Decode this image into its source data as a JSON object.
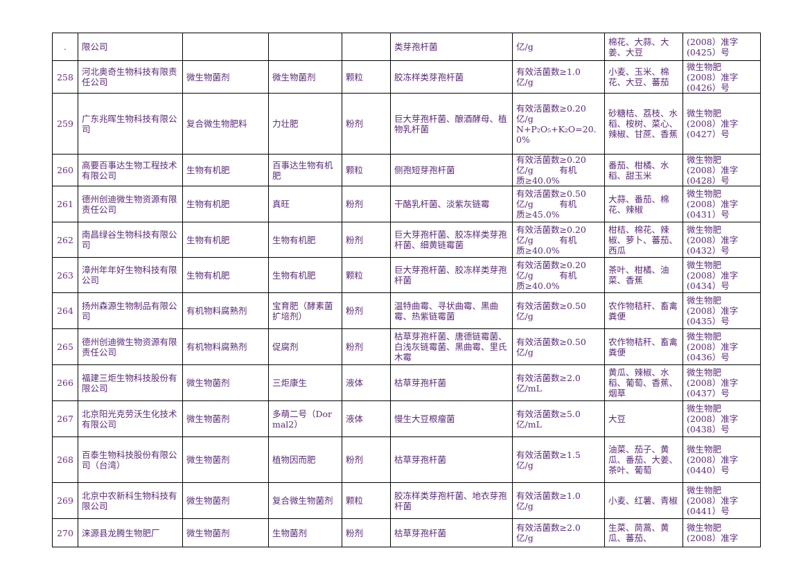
{
  "continuation_row": {
    "no": ".",
    "company": "限公司",
    "category": "",
    "product": "",
    "form": "",
    "strains": "类芽孢杆菌",
    "content": [
      "亿/g"
    ],
    "crops": "棉花、大蒜、大姜、大豆",
    "reg": [
      "(2008）准字",
      "(0425）号"
    ]
  },
  "rows": [
    {
      "no": "258",
      "company": "河北奥奇生物科技有限责任公司",
      "category": "微生物菌剂",
      "product": "微生物菌剂",
      "form": "颗粒",
      "strains": "胶冻样类芽孢杆菌",
      "content": [
        "有效活菌数≥1.0",
        "亿/g"
      ],
      "crops": "小麦、玉米、棉花、大豆、蕃茄",
      "reg": [
        "微生物肥",
        "(2008）准字",
        "(0426）号"
      ]
    },
    {
      "no": "259",
      "company": "广东兆晖生物科技有限公司",
      "category": "复合微生物肥料",
      "product": "力壮肥",
      "form": "粉剂",
      "strains": "巨大芽孢杆菌、酿酒酵母、植物乳杆菌",
      "content": [
        "有效活菌数≥0.20",
        "亿/g",
        "N+P₂O₅+K₂O=20.0%"
      ],
      "crops": "砂糖桔、荔枝、水稻、桉树、菜心、辣椒、甘蔗、香蕉",
      "reg": [
        "微生物肥",
        "(2008）准字",
        "(0427）号"
      ]
    },
    {
      "no": "260",
      "company": "高要百事达生物工程技术有限公司",
      "category": "生物有机肥",
      "product": "百事达生物有机肥",
      "form": "颗粒",
      "strains": "侧孢短芽孢杆菌",
      "content": [
        "有效活菌数≥0.20",
        "亿/g　　　有机",
        "质≥40.0%"
      ],
      "crops": "番茄、柑橘、水稻、甜玉米",
      "reg": [
        "微生物肥",
        "(2008）准字",
        "(0428）号"
      ]
    },
    {
      "no": "261",
      "company": "德州创迪微生物资源有限责任公司",
      "category": "生物有机肥",
      "product": "真旺",
      "form": "粉剂",
      "strains": "干酪乳杆菌、淡紫灰链霉",
      "content": [
        "有效活菌数≥0.50",
        "亿/g　　　有机",
        "质≥45.0%"
      ],
      "crops": "大蒜、番茄、棉花、辣椒",
      "reg": [
        "微生物肥",
        "(2008）准字",
        "(0431）号"
      ]
    },
    {
      "no": "262",
      "company": "南昌绿谷生物科技有限公司",
      "category": "生物有机肥",
      "product": "生物有机肥",
      "form": "粉剂",
      "strains": "巨大芽孢杆菌、胶冻样类芽孢杆菌、细黄链霉菌",
      "content": [
        "有效活菌数≥0.20",
        "亿/g　　　有机",
        "质≥40.0%"
      ],
      "crops": "柑桔、棉花、辣椒、萝卜、蕃茄、西瓜",
      "reg": [
        "微生物肥",
        "(2008）准字",
        "(0432）号"
      ]
    },
    {
      "no": "263",
      "company": "漳州年年好生物科技有限公司",
      "category": "生物有机肥",
      "product": "生物有机肥",
      "form": "颗粒",
      "strains": "巨大芽孢杆菌、胶冻样类芽孢杆菌",
      "content": [
        "有效活菌数≥0.20",
        "亿/g　　　有机",
        "质≥40.0%"
      ],
      "crops": "茶叶、柑橘、油菜、香蕉",
      "reg": [
        "微生物肥",
        "(2008）准字",
        "(0434）号"
      ]
    },
    {
      "no": "264",
      "company": "扬州森源生物制品有限公司",
      "category": "有机物料腐熟剂",
      "product": "宝育肥（酵素菌扩培剂）",
      "form": "粉剂",
      "strains": "温特曲霉、寻状曲霉、黑曲霉、热紫链霉菌",
      "content": [
        "有效活菌数≥0.50",
        "亿/g"
      ],
      "crops": "农作物秸秆、畜禽粪便",
      "reg": [
        "微生物肥",
        "(2008）准字",
        "(0435）号"
      ]
    },
    {
      "no": "265",
      "company": "德州创迪微生物资源有限责任公司",
      "category": "有机物料腐熟剂",
      "product": "促腐剂",
      "form": "粉剂",
      "strains": "枯草芽孢杆菌、唐德链霉菌、白浅灰链霉菌、黑曲霉、里氏木霉",
      "content": [
        "有效活菌数≥0.50",
        "亿/g"
      ],
      "crops": "农作物秸秆、畜禽粪便",
      "reg": [
        "微生物肥",
        "(2008）准字",
        "(0436）号"
      ]
    },
    {
      "no": "266",
      "company": "福建三炬生物科技股份有限公司",
      "category": "微生物菌剂",
      "product": "三炬康生",
      "form": "液体",
      "strains": "枯草芽孢杆菌",
      "content": [
        "有效活菌数≥2.0",
        "亿/mL"
      ],
      "crops": "黄瓜、辣椒、水稻、葡萄、香蕉、烟草",
      "reg": [
        "微生物肥",
        "(2008）准字",
        "(0437）号"
      ]
    },
    {
      "no": "267",
      "company": "北京阳光克劳沃生化技术有限公司",
      "category": "微生物菌剂",
      "product": "多萌二号（Dormal2）",
      "form": "液体",
      "strains": "慢生大豆根瘤菌",
      "content": [
        "有效活菌数≥5.0",
        "亿/mL"
      ],
      "crops": "大豆",
      "reg": [
        "微生物肥",
        "(2008）准字",
        "(0438）号"
      ]
    },
    {
      "no": "268",
      "company": "百泰生物科技股份有限公司（台湾）",
      "category": "微生物菌剂",
      "product": "植物因而肥",
      "form": "粉剂",
      "strains": "枯草芽孢杆菌",
      "content": [
        "有效活菌数≥1.5",
        "亿/g"
      ],
      "crops": "油菜、茄子、黄瓜、番茄、大姜、茶叶、葡萄",
      "reg": [
        "微生物肥",
        "(2008）准字",
        "(0440）号"
      ]
    },
    {
      "no": "269",
      "company": "北京中农新科生物科技有限公司",
      "category": "微生物菌剂",
      "product": "复合微生物菌剂",
      "form": "颗粒",
      "strains": "胶冻样类芽孢杆菌、地衣芽孢杆菌",
      "content": [
        "有效活菌数≥1.0",
        "亿/g"
      ],
      "crops": "小麦、红薯、青椒",
      "reg": [
        "微生物肥",
        "(2008）准字",
        "(0441）号"
      ]
    },
    {
      "no": "270",
      "company": "涞源县龙腾生物肥厂",
      "category": "微生物菌剂",
      "product": "生物菌剂",
      "form": "粉剂",
      "strains": "枯草芽孢杆菌",
      "content": [
        "有效活菌数≥2.0",
        "亿/g"
      ],
      "crops": "生菜、茼蒿、黄瓜、蕃茄、",
      "reg": [
        "微生物肥",
        "(2008）准字"
      ]
    }
  ]
}
